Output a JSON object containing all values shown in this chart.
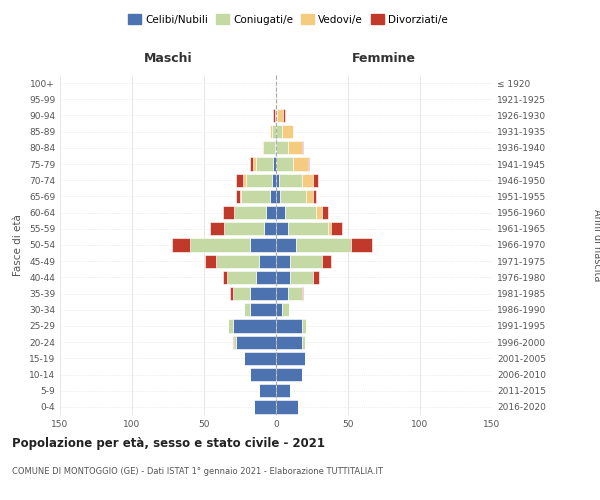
{
  "age_groups": [
    "0-4",
    "5-9",
    "10-14",
    "15-19",
    "20-24",
    "25-29",
    "30-34",
    "35-39",
    "40-44",
    "45-49",
    "50-54",
    "55-59",
    "60-64",
    "65-69",
    "70-74",
    "75-79",
    "80-84",
    "85-89",
    "90-94",
    "95-99",
    "100+"
  ],
  "birth_years": [
    "2016-2020",
    "2011-2015",
    "2006-2010",
    "2001-2005",
    "1996-2000",
    "1991-1995",
    "1986-1990",
    "1981-1985",
    "1976-1980",
    "1971-1975",
    "1966-1970",
    "1961-1965",
    "1956-1960",
    "1951-1955",
    "1946-1950",
    "1941-1945",
    "1936-1940",
    "1931-1935",
    "1926-1930",
    "1921-1925",
    "≤ 1920"
  ],
  "colors": {
    "celibi": "#4c72b0",
    "coniugati": "#c5d9a4",
    "vedovi": "#f5cc7f",
    "divorziati": "#c0392b"
  },
  "maschi": {
    "celibi": [
      15,
      12,
      18,
      22,
      28,
      30,
      18,
      18,
      14,
      12,
      18,
      8,
      7,
      4,
      3,
      2,
      1,
      0,
      0,
      0,
      0
    ],
    "coniugati": [
      0,
      0,
      0,
      0,
      1,
      3,
      4,
      12,
      20,
      30,
      42,
      28,
      22,
      20,
      18,
      12,
      8,
      3,
      1,
      0,
      0
    ],
    "vedovi": [
      0,
      0,
      0,
      0,
      0,
      0,
      0,
      0,
      0,
      0,
      0,
      0,
      0,
      1,
      2,
      2,
      1,
      1,
      0,
      0,
      0
    ],
    "divorziati": [
      0,
      0,
      0,
      0,
      1,
      0,
      0,
      2,
      3,
      7,
      12,
      10,
      8,
      3,
      5,
      2,
      0,
      0,
      1,
      0,
      0
    ]
  },
  "femmine": {
    "celibi": [
      15,
      10,
      18,
      20,
      18,
      18,
      4,
      8,
      10,
      10,
      14,
      8,
      6,
      3,
      2,
      0,
      0,
      0,
      0,
      0,
      0
    ],
    "coniugati": [
      0,
      0,
      0,
      0,
      2,
      3,
      5,
      10,
      16,
      22,
      38,
      28,
      22,
      18,
      16,
      12,
      8,
      4,
      1,
      0,
      0
    ],
    "vedovi": [
      0,
      0,
      0,
      0,
      0,
      0,
      0,
      0,
      0,
      0,
      0,
      2,
      4,
      5,
      8,
      10,
      10,
      8,
      4,
      1,
      0
    ],
    "divorziati": [
      0,
      0,
      0,
      0,
      0,
      0,
      0,
      1,
      4,
      6,
      15,
      8,
      4,
      2,
      3,
      1,
      1,
      0,
      1,
      0,
      0
    ]
  },
  "xlim": 150,
  "title": "Popolazione per età, sesso e stato civile - 2021",
  "subtitle": "COMUNE DI MONTOGGIO (GE) - Dati ISTAT 1° gennaio 2021 - Elaborazione TUTTITALIA.IT",
  "ylabel_left": "Fasce di età",
  "ylabel_right": "Anni di nascita",
  "xlabel_left": "Maschi",
  "xlabel_right": "Femmine"
}
